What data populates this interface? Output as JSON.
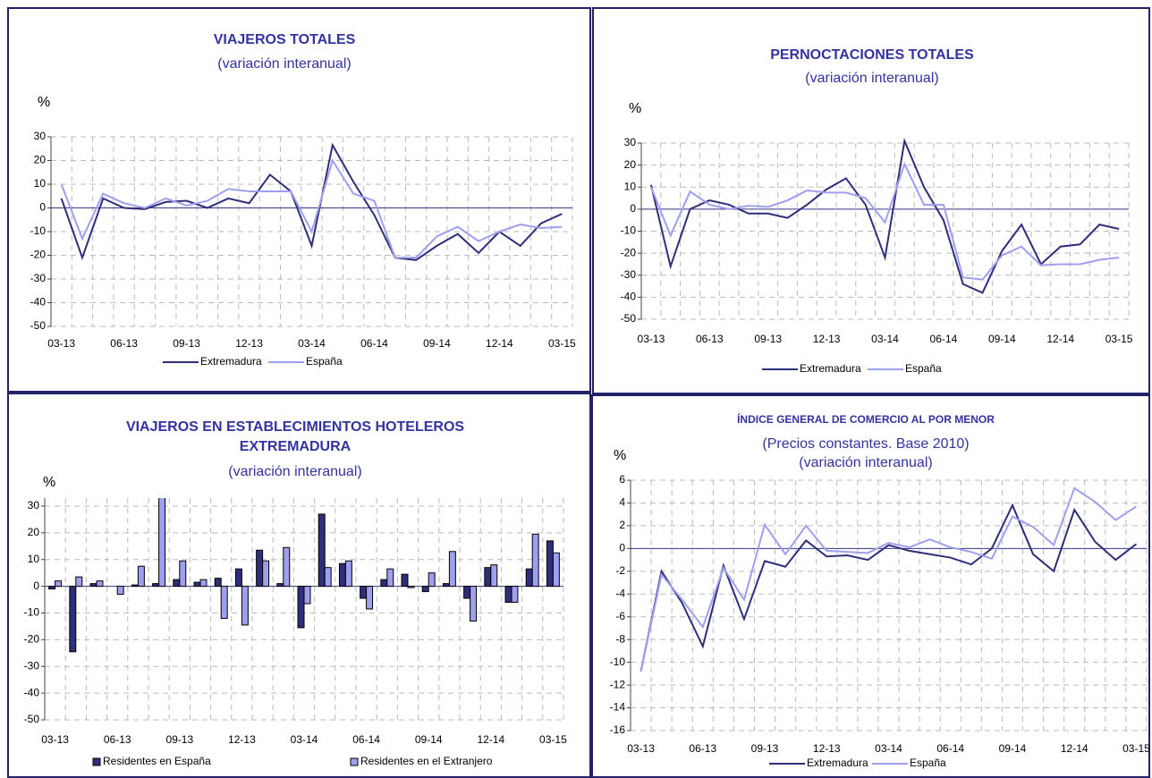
{
  "chart_data": [
    {
      "type": "line",
      "title": [
        "VIAJEROS TOTALES"
      ],
      "subtitle": [
        "(variación interanual)"
      ],
      "y_label": "%",
      "categories": [
        "03-13",
        null,
        null,
        "06-13",
        null,
        null,
        "09-13",
        null,
        null,
        "12-13",
        null,
        null,
        "03-14",
        null,
        null,
        "06-14",
        null,
        null,
        "09-14",
        null,
        null,
        "12-14",
        null,
        null,
        "03-15"
      ],
      "series": [
        {
          "name": "Extremadura",
          "color": "#2e2e7a",
          "values": [
            4,
            -21,
            4,
            0,
            -0.5,
            2.5,
            3,
            0,
            4,
            2,
            14,
            7,
            -16,
            26.5,
            11,
            -3,
            -21,
            -22,
            -16,
            -11,
            -19,
            -10,
            -16,
            -6.5,
            -2.5
          ]
        },
        {
          "name": "España",
          "color": "#9f9ff0",
          "values": [
            10,
            -13,
            6,
            2,
            0,
            4,
            1,
            3,
            8,
            7,
            7,
            7,
            -10,
            20,
            6,
            3,
            -21,
            -21,
            -12,
            -8,
            -14,
            -10,
            -7,
            -8.5,
            -8
          ]
        }
      ],
      "ylim": [
        -50,
        30
      ],
      "yticks": [
        -50,
        -40,
        -30,
        -20,
        -10,
        0,
        10,
        20,
        30
      ],
      "grid": true
    },
    {
      "type": "line",
      "title": [
        "PERNOCTACIONES TOTALES"
      ],
      "subtitle": [
        "(variación interanual)"
      ],
      "y_label": "%",
      "categories": [
        "03-13",
        null,
        null,
        "06-13",
        null,
        null,
        "09-13",
        null,
        null,
        "12-13",
        null,
        null,
        "03-14",
        null,
        null,
        "06-14",
        null,
        null,
        "09-14",
        null,
        null,
        "12-14",
        null,
        null,
        "03-15"
      ],
      "series": [
        {
          "name": "Extremadura",
          "color": "#2e2e7a",
          "values": [
            11,
            -26,
            0,
            4,
            2,
            -2,
            -2,
            -4,
            2,
            9,
            14,
            2,
            -22,
            31,
            10,
            -5,
            -34,
            -38,
            -19,
            -7,
            -25,
            -17,
            -16,
            -7,
            -9
          ]
        },
        {
          "name": "España",
          "color": "#9f9ff0",
          "values": [
            10,
            -12,
            8,
            2,
            0,
            1.5,
            1,
            4,
            8.5,
            7.5,
            7.5,
            5,
            -6,
            20.5,
            2,
            2,
            -31,
            -32,
            -21,
            -17,
            -25.5,
            -25,
            -25,
            -23,
            -22
          ]
        }
      ],
      "ylim": [
        -50,
        30
      ],
      "yticks": [
        -50,
        -40,
        -30,
        -20,
        -10,
        0,
        10,
        20,
        30
      ],
      "grid": true
    },
    {
      "type": "bar",
      "title": [
        "VIAJEROS EN ESTABLECIMIENTOS HOTELEROS",
        "EXTREMADURA"
      ],
      "subtitle": [
        "(variación interanual)"
      ],
      "y_label": "%",
      "categories": [
        "03-13",
        null,
        null,
        "06-13",
        null,
        null,
        "09-13",
        null,
        null,
        "12-13",
        null,
        null,
        "03-14",
        null,
        null,
        "06-14",
        null,
        null,
        "09-14",
        null,
        null,
        "12-14",
        null,
        null,
        "03-15"
      ],
      "series": [
        {
          "name": "Residentes en España",
          "color": "#2e2e7a",
          "values": [
            -1,
            -24.5,
            1,
            0,
            0.5,
            1,
            2.5,
            1.5,
            3,
            6.5,
            13.5,
            1,
            -15.5,
            27,
            8.5,
            -4.5,
            2.5,
            4.5,
            -2,
            1,
            -4.5,
            7,
            -6,
            6.5,
            17
          ]
        },
        {
          "name": "Residentes en el Extranjero",
          "color": "#9f9ff0",
          "values": [
            2,
            3.5,
            2,
            -3,
            7.5,
            35,
            9.5,
            2.5,
            -12,
            -14.5,
            9.5,
            14.5,
            -6.5,
            7,
            9.5,
            -8.5,
            6.5,
            -0.5,
            5,
            13,
            -13,
            8,
            -6,
            19.5,
            12.5
          ]
        }
      ],
      "ylim": [
        -50,
        33
      ],
      "yticks": [
        -50,
        -40,
        -30,
        -20,
        -10,
        0,
        10,
        20,
        30
      ],
      "grid": true
    },
    {
      "type": "line",
      "title": [
        "ÍNDICE GENERAL  DE COMERCIO AL POR MENOR"
      ],
      "subtitle": [
        "(Precios constantes. Base 2010)",
        "(variación interanual)"
      ],
      "y_label": "%",
      "categories": [
        "03-13",
        null,
        null,
        "06-13",
        null,
        null,
        "09-13",
        null,
        null,
        "12-13",
        null,
        null,
        "03-14",
        null,
        null,
        "06-14",
        null,
        null,
        "09-14",
        null,
        null,
        "12-14",
        null,
        null,
        "03-15"
      ],
      "series": [
        {
          "name": "Extremadura",
          "color": "#2e2e7a",
          "values": [
            -10.8,
            -2,
            -4.8,
            -8.6,
            -1.5,
            -6.2,
            -1.1,
            -1.6,
            0.7,
            -0.7,
            -0.6,
            -1,
            0.3,
            -0.2,
            -0.5,
            -0.8,
            -1.4,
            0,
            3.8,
            -0.5,
            -2,
            3.4,
            0.6,
            -1,
            0.4
          ]
        },
        {
          "name": "España",
          "color": "#9f9ff0",
          "values": [
            -10.8,
            -2.3,
            -4.5,
            -6.9,
            -1.7,
            -4.5,
            2.1,
            -0.5,
            2,
            -0.2,
            -0.3,
            -0.4,
            0.5,
            0.1,
            0.8,
            0.1,
            -0.3,
            -0.9,
            2.8,
            1.9,
            0.3,
            5.3,
            4.1,
            2.5,
            3.7
          ]
        }
      ],
      "ylim": [
        -16,
        6
      ],
      "yticks": [
        -16,
        -14,
        -12,
        -10,
        -8,
        -6,
        -4,
        -2,
        0,
        2,
        4,
        6
      ],
      "grid": true
    }
  ]
}
